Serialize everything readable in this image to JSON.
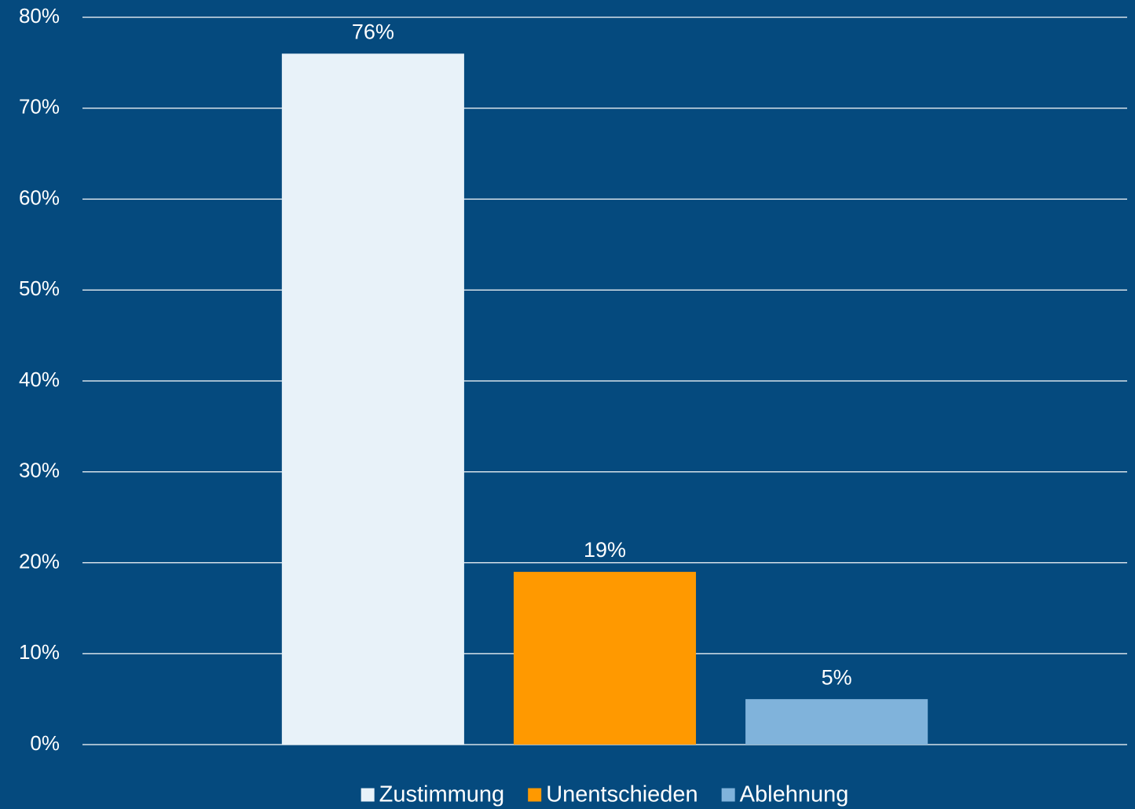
{
  "chart_data": {
    "type": "bar",
    "categories": [
      null
    ],
    "series": [
      {
        "name": "Zustimmung",
        "color": "#e8f2f9",
        "values": [
          76
        ],
        "value_labels": [
          "76%"
        ]
      },
      {
        "name": "Unentschieden",
        "color": "#ff9900",
        "values": [
          19
        ],
        "value_labels": [
          "19%"
        ]
      },
      {
        "name": "Ablehnung",
        "color": "#80b3db",
        "values": [
          5
        ],
        "value_labels": [
          "5%"
        ]
      }
    ],
    "ylim": [
      0,
      80
    ],
    "yticks": [
      {
        "value": 0,
        "label": "0%"
      },
      {
        "value": 10,
        "label": "10%"
      },
      {
        "value": 20,
        "label": "20%"
      },
      {
        "value": 30,
        "label": "30%"
      },
      {
        "value": 40,
        "label": "40%"
      },
      {
        "value": 50,
        "label": "50%"
      },
      {
        "value": 60,
        "label": "60%"
      },
      {
        "value": 70,
        "label": "70%"
      },
      {
        "value": 80,
        "label": "80%"
      }
    ],
    "grid": true,
    "legend": "bottom"
  }
}
